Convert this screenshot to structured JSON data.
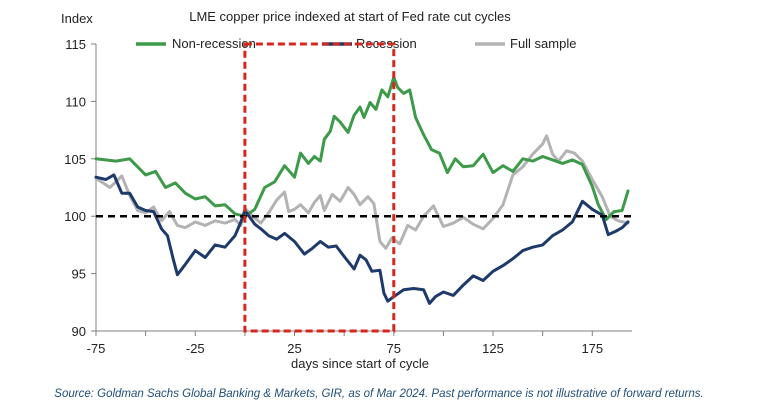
{
  "colors": {
    "non_recession": "#3c9a48",
    "recession": "#1d3a6b",
    "full_sample": "#b3b3b3",
    "baseline": "#000000",
    "highlight_box": "#d7261e",
    "axis": "#808080",
    "source_text": "#1f4e79"
  },
  "chart_data": {
    "type": "line",
    "title": "LME copper price indexed at start of Fed rate cut cycles",
    "ylabel": "Index",
    "xlabel": "days since start of cycle",
    "xlim": [
      -75,
      195
    ],
    "ylim": [
      90,
      115
    ],
    "x_ticks": [
      "-75",
      "-25",
      "25",
      "75",
      "125",
      "175"
    ],
    "x_tick_values": [
      -75,
      -25,
      25,
      75,
      125,
      175
    ],
    "y_ticks": [
      "90",
      "95",
      "100",
      "105",
      "110",
      "115"
    ],
    "y_tick_values": [
      90,
      95,
      100,
      105,
      110,
      115
    ],
    "baseline": 100,
    "highlight_range": {
      "x": [
        0,
        75
      ],
      "y": [
        90,
        115
      ]
    },
    "legend": [
      "Non-recession",
      "Recession",
      "Full sample"
    ],
    "series": [
      {
        "name": "Non-recession",
        "points": [
          [
            -75,
            105.0
          ],
          [
            -65,
            104.8
          ],
          [
            -58,
            105.0
          ],
          [
            -50,
            103.6
          ],
          [
            -45,
            103.9
          ],
          [
            -40,
            102.5
          ],
          [
            -35,
            102.9
          ],
          [
            -30,
            102.0
          ],
          [
            -25,
            101.5
          ],
          [
            -20,
            101.7
          ],
          [
            -15,
            100.9
          ],
          [
            -10,
            101.0
          ],
          [
            -5,
            100.2
          ],
          [
            0,
            100.0
          ],
          [
            5,
            100.6
          ],
          [
            10,
            102.5
          ],
          [
            15,
            103.0
          ],
          [
            20,
            104.4
          ],
          [
            25,
            103.4
          ],
          [
            28,
            105.5
          ],
          [
            32,
            104.6
          ],
          [
            35,
            105.2
          ],
          [
            38,
            104.8
          ],
          [
            40,
            106.7
          ],
          [
            43,
            107.4
          ],
          [
            45,
            108.7
          ],
          [
            48,
            108.2
          ],
          [
            52,
            107.3
          ],
          [
            55,
            108.8
          ],
          [
            58,
            109.5
          ],
          [
            60,
            108.6
          ],
          [
            63,
            109.9
          ],
          [
            66,
            109.3
          ],
          [
            69,
            111.0
          ],
          [
            72,
            110.4
          ],
          [
            75,
            112.1
          ],
          [
            77,
            111.2
          ],
          [
            80,
            110.7
          ],
          [
            83,
            111.0
          ],
          [
            86,
            108.6
          ],
          [
            90,
            107.1
          ],
          [
            94,
            105.8
          ],
          [
            98,
            105.5
          ],
          [
            102,
            103.8
          ],
          [
            106,
            105.0
          ],
          [
            110,
            104.3
          ],
          [
            115,
            104.4
          ],
          [
            120,
            105.4
          ],
          [
            125,
            103.8
          ],
          [
            130,
            104.4
          ],
          [
            135,
            103.9
          ],
          [
            140,
            105.0
          ],
          [
            145,
            104.8
          ],
          [
            150,
            105.2
          ],
          [
            155,
            104.9
          ],
          [
            160,
            104.6
          ],
          [
            165,
            104.9
          ],
          [
            170,
            104.5
          ],
          [
            175,
            102.6
          ],
          [
            178,
            101.0
          ],
          [
            182,
            99.7
          ],
          [
            186,
            100.4
          ],
          [
            190,
            100.5
          ],
          [
            193,
            102.2
          ]
        ]
      },
      {
        "name": "Recession",
        "points": [
          [
            -75,
            103.4
          ],
          [
            -70,
            103.2
          ],
          [
            -66,
            103.6
          ],
          [
            -62,
            102.0
          ],
          [
            -58,
            102.0
          ],
          [
            -54,
            100.8
          ],
          [
            -50,
            100.5
          ],
          [
            -46,
            100.4
          ],
          [
            -42,
            98.9
          ],
          [
            -39,
            98.3
          ],
          [
            -36,
            96.2
          ],
          [
            -34,
            94.9
          ],
          [
            -30,
            95.8
          ],
          [
            -25,
            97.0
          ],
          [
            -20,
            96.4
          ],
          [
            -15,
            97.5
          ],
          [
            -10,
            97.3
          ],
          [
            -5,
            98.3
          ],
          [
            -2,
            99.5
          ],
          [
            0,
            100.5
          ],
          [
            5,
            99.3
          ],
          [
            8,
            98.9
          ],
          [
            12,
            98.3
          ],
          [
            16,
            98.0
          ],
          [
            20,
            98.5
          ],
          [
            25,
            97.8
          ],
          [
            30,
            96.7
          ],
          [
            34,
            97.2
          ],
          [
            38,
            97.8
          ],
          [
            42,
            97.3
          ],
          [
            46,
            97.4
          ],
          [
            50,
            96.5
          ],
          [
            55,
            95.4
          ],
          [
            58,
            96.6
          ],
          [
            61,
            96.2
          ],
          [
            64,
            95.2
          ],
          [
            68,
            95.3
          ],
          [
            70,
            93.3
          ],
          [
            72,
            92.6
          ],
          [
            75,
            93.0
          ],
          [
            80,
            93.6
          ],
          [
            85,
            93.7
          ],
          [
            90,
            93.6
          ],
          [
            93,
            92.4
          ],
          [
            96,
            93.0
          ],
          [
            100,
            93.4
          ],
          [
            105,
            93.1
          ],
          [
            110,
            94.0
          ],
          [
            115,
            94.8
          ],
          [
            120,
            94.4
          ],
          [
            125,
            95.2
          ],
          [
            130,
            95.7
          ],
          [
            135,
            96.3
          ],
          [
            140,
            97.0
          ],
          [
            145,
            97.3
          ],
          [
            150,
            97.5
          ],
          [
            155,
            98.3
          ],
          [
            160,
            98.8
          ],
          [
            165,
            99.5
          ],
          [
            170,
            101.3
          ],
          [
            175,
            100.6
          ],
          [
            180,
            100.1
          ],
          [
            183,
            98.4
          ],
          [
            187,
            98.7
          ],
          [
            190,
            99.0
          ],
          [
            193,
            99.5
          ]
        ]
      },
      {
        "name": "Full sample",
        "points": [
          [
            -75,
            103.3
          ],
          [
            -68,
            102.5
          ],
          [
            -62,
            103.5
          ],
          [
            -58,
            101.8
          ],
          [
            -54,
            100.5
          ],
          [
            -50,
            100.3
          ],
          [
            -46,
            100.8
          ],
          [
            -42,
            99.6
          ],
          [
            -38,
            100.4
          ],
          [
            -34,
            99.2
          ],
          [
            -30,
            99.0
          ],
          [
            -25,
            99.5
          ],
          [
            -20,
            99.2
          ],
          [
            -15,
            99.6
          ],
          [
            -10,
            99.4
          ],
          [
            -5,
            99.7
          ],
          [
            -2,
            99.2
          ],
          [
            0,
            100.7
          ],
          [
            4,
            100.0
          ],
          [
            8,
            99.4
          ],
          [
            12,
            100.3
          ],
          [
            16,
            101.4
          ],
          [
            20,
            102.1
          ],
          [
            22,
            100.4
          ],
          [
            25,
            100.6
          ],
          [
            28,
            101.0
          ],
          [
            32,
            100.3
          ],
          [
            35,
            101.2
          ],
          [
            38,
            101.8
          ],
          [
            40,
            100.5
          ],
          [
            44,
            101.9
          ],
          [
            48,
            101.3
          ],
          [
            52,
            102.5
          ],
          [
            55,
            101.9
          ],
          [
            58,
            101.0
          ],
          [
            62,
            101.7
          ],
          [
            65,
            101.1
          ],
          [
            68,
            97.8
          ],
          [
            71,
            97.2
          ],
          [
            74,
            98.1
          ],
          [
            78,
            97.6
          ],
          [
            82,
            99.2
          ],
          [
            86,
            98.8
          ],
          [
            90,
            100.0
          ],
          [
            95,
            100.9
          ],
          [
            100,
            99.1
          ],
          [
            105,
            99.4
          ],
          [
            110,
            99.9
          ],
          [
            115,
            99.3
          ],
          [
            120,
            98.9
          ],
          [
            125,
            99.8
          ],
          [
            130,
            101.0
          ],
          [
            135,
            103.6
          ],
          [
            140,
            104.3
          ],
          [
            145,
            105.4
          ],
          [
            150,
            106.3
          ],
          [
            152,
            107.0
          ],
          [
            155,
            105.4
          ],
          [
            158,
            104.8
          ],
          [
            162,
            105.7
          ],
          [
            166,
            105.5
          ],
          [
            170,
            104.8
          ],
          [
            175,
            103.2
          ],
          [
            180,
            101.7
          ],
          [
            184,
            100.0
          ],
          [
            188,
            99.6
          ],
          [
            193,
            99.4
          ]
        ]
      }
    ]
  },
  "source_note": "Source: Goldman Sachs Global Banking & Markets, GIR, as of Mar 2024. Past performance is not illustrative of forward returns."
}
